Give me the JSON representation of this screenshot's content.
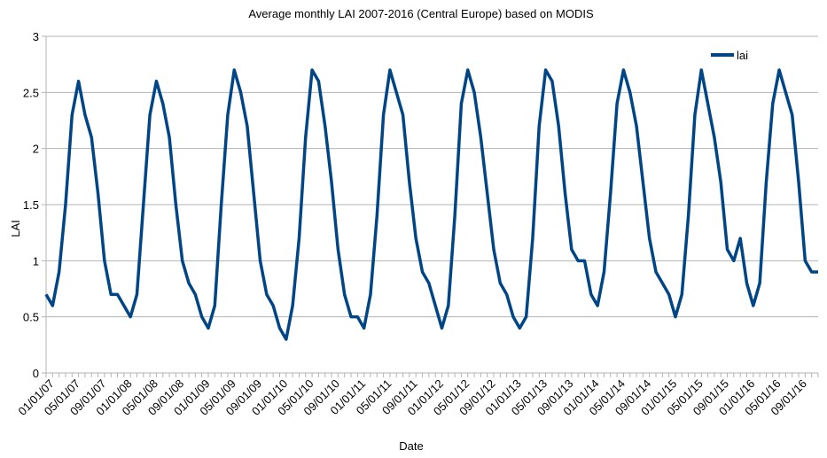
{
  "chart_data": {
    "type": "line",
    "title": "Average monthly LAI 2007-2016 (Central Europe) based on MODIS",
    "xlabel": "Date",
    "ylabel": "LAI",
    "ylim": [
      0,
      3
    ],
    "yticks": [
      "0",
      "0.5",
      "1",
      "1.5",
      "2",
      "2.5",
      "3"
    ],
    "xtick_labels": [
      "01/01/07",
      "05/01/07",
      "09/01/07",
      "01/01/08",
      "05/01/08",
      "09/01/08",
      "01/01/09",
      "05/01/09",
      "09/01/09",
      "01/01/10",
      "05/01/10",
      "09/01/10",
      "01/01/11",
      "05/01/11",
      "09/01/11",
      "01/01/12",
      "05/01/12",
      "09/01/12",
      "01/01/13",
      "05/01/13",
      "09/01/13",
      "01/01/14",
      "05/01/14",
      "09/01/14",
      "01/01/15",
      "05/01/15",
      "09/01/15",
      "01/01/16",
      "05/01/16",
      "09/01/16"
    ],
    "grid": "horizontal",
    "legend_position": "top-right",
    "series": [
      {
        "name": "lai",
        "color": "#004586",
        "values": [
          0.7,
          0.6,
          0.9,
          1.5,
          2.3,
          2.6,
          2.3,
          2.1,
          1.6,
          1.0,
          0.7,
          0.7,
          0.6,
          0.5,
          0.7,
          1.5,
          2.3,
          2.6,
          2.4,
          2.1,
          1.5,
          1.0,
          0.8,
          0.7,
          0.5,
          0.4,
          0.6,
          1.5,
          2.3,
          2.7,
          2.5,
          2.2,
          1.6,
          1.0,
          0.7,
          0.6,
          0.4,
          0.3,
          0.6,
          1.2,
          2.1,
          2.7,
          2.6,
          2.2,
          1.7,
          1.1,
          0.7,
          0.5,
          0.5,
          0.4,
          0.7,
          1.4,
          2.3,
          2.7,
          2.5,
          2.3,
          1.7,
          1.2,
          0.9,
          0.8,
          0.6,
          0.4,
          0.6,
          1.4,
          2.4,
          2.7,
          2.5,
          2.1,
          1.6,
          1.1,
          0.8,
          0.7,
          0.5,
          0.4,
          0.5,
          1.2,
          2.2,
          2.7,
          2.6,
          2.2,
          1.6,
          1.1,
          1.0,
          1.0,
          0.7,
          0.6,
          0.9,
          1.6,
          2.4,
          2.7,
          2.5,
          2.2,
          1.7,
          1.2,
          0.9,
          0.8,
          0.7,
          0.5,
          0.7,
          1.4,
          2.3,
          2.7,
          2.4,
          2.1,
          1.7,
          1.1,
          1.0,
          1.2,
          0.8,
          0.6,
          0.8,
          1.7,
          2.4,
          2.7,
          2.5,
          2.3,
          1.7,
          1.0,
          0.9,
          0.9
        ]
      }
    ]
  }
}
